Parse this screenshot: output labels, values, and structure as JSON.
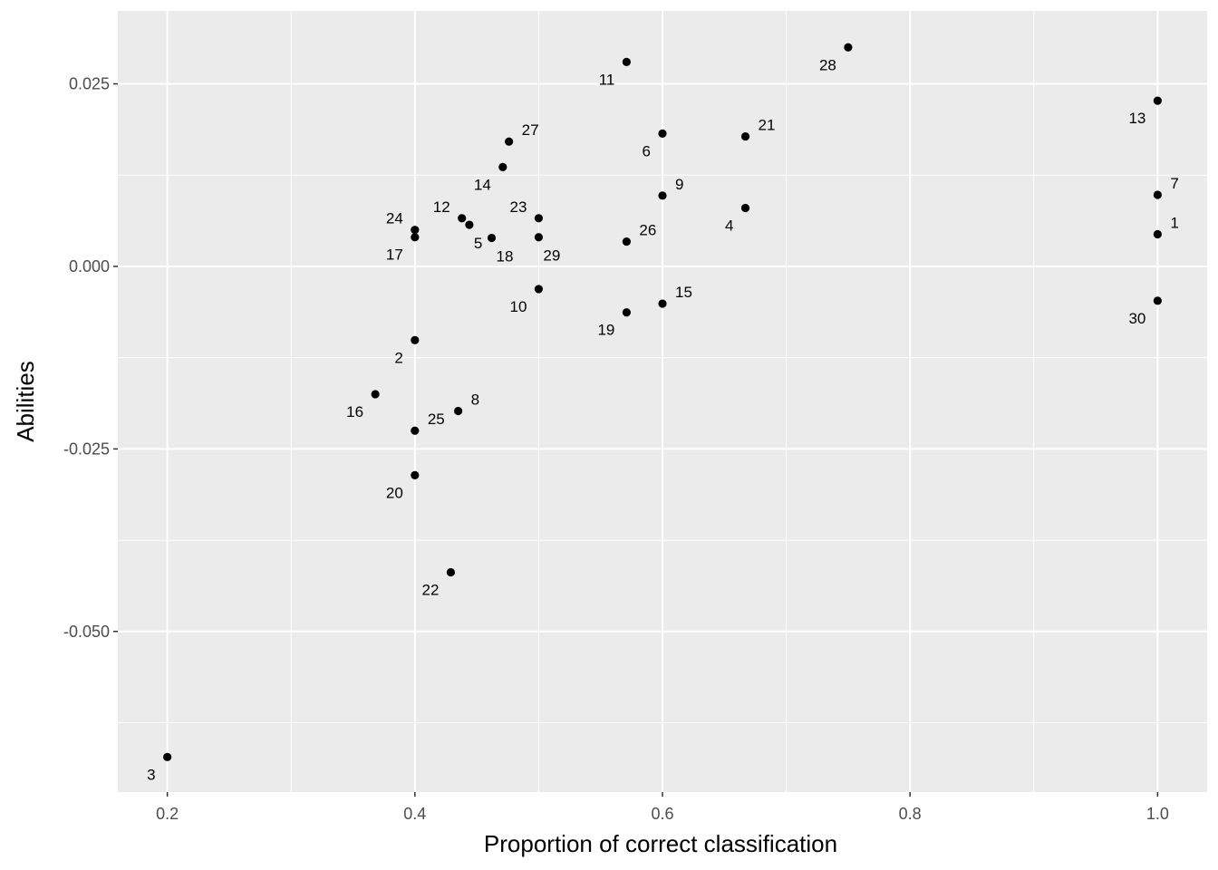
{
  "chart_data": {
    "type": "scatter",
    "title": "",
    "xlabel": "Proportion of correct classification",
    "ylabel": "Abilities",
    "xlim": [
      0.16,
      1.04
    ],
    "ylim": [
      -0.072,
      0.035
    ],
    "x_ticks": [
      {
        "value": 0.2,
        "label": "0.2"
      },
      {
        "value": 0.4,
        "label": "0.4"
      },
      {
        "value": 0.6,
        "label": "0.6"
      },
      {
        "value": 0.8,
        "label": "0.8"
      },
      {
        "value": 1.0,
        "label": "1.0"
      }
    ],
    "y_ticks": [
      {
        "value": -0.05,
        "label": "-0.050"
      },
      {
        "value": -0.025,
        "label": "-0.025"
      },
      {
        "value": 0.0,
        "label": "0.000"
      },
      {
        "value": 0.025,
        "label": "0.025"
      }
    ],
    "x_minor": [
      0.3,
      0.5,
      0.7,
      0.9
    ],
    "y_minor": [
      -0.0625,
      -0.0375,
      -0.0125,
      0.0125
    ],
    "grid": true,
    "background": "#ebebeb",
    "gridline_color": "#ffffff",
    "point_color": "#000000",
    "points": [
      {
        "label": "1",
        "x": 1.0,
        "y": 0.0044,
        "label_pos": "upper-right"
      },
      {
        "label": "2",
        "x": 0.4,
        "y": -0.0101,
        "label_pos": "lower-left"
      },
      {
        "label": "3",
        "x": 0.2,
        "y": -0.0672,
        "label_pos": "lower-left"
      },
      {
        "label": "4",
        "x": 0.667,
        "y": 0.008,
        "label_pos": "lower-left"
      },
      {
        "label": "5",
        "x": 0.444,
        "y": 0.0057,
        "label_pos": "lower-right"
      },
      {
        "label": "6",
        "x": 0.6,
        "y": 0.0182,
        "label_pos": "lower-left"
      },
      {
        "label": "7",
        "x": 1.0,
        "y": 0.0098,
        "label_pos": "upper-right"
      },
      {
        "label": "8",
        "x": 0.435,
        "y": -0.0198,
        "label_pos": "upper-right"
      },
      {
        "label": "9",
        "x": 0.6,
        "y": 0.0097,
        "label_pos": "upper-right"
      },
      {
        "label": "10",
        "x": 0.5,
        "y": -0.0031,
        "label_pos": "lower-left"
      },
      {
        "label": "11",
        "x": 0.571,
        "y": 0.028,
        "label_pos": "lower-left"
      },
      {
        "label": "12",
        "x": 0.438,
        "y": 0.0066,
        "label_pos": "upper-left"
      },
      {
        "label": "13",
        "x": 1.0,
        "y": 0.0227,
        "label_pos": "lower-left"
      },
      {
        "label": "14",
        "x": 0.471,
        "y": 0.0136,
        "label_pos": "lower-left"
      },
      {
        "label": "15",
        "x": 0.6,
        "y": -0.0051,
        "label_pos": "upper-right"
      },
      {
        "label": "16",
        "x": 0.368,
        "y": -0.0175,
        "label_pos": "lower-left"
      },
      {
        "label": "17",
        "x": 0.4,
        "y": 0.004,
        "label_pos": "lower-left"
      },
      {
        "label": "18",
        "x": 0.462,
        "y": 0.0039,
        "label_pos": "lower-right"
      },
      {
        "label": "19",
        "x": 0.571,
        "y": -0.0063,
        "label_pos": "lower-left"
      },
      {
        "label": "20",
        "x": 0.4,
        "y": -0.0286,
        "label_pos": "lower-left"
      },
      {
        "label": "21",
        "x": 0.667,
        "y": 0.0178,
        "label_pos": "upper-right"
      },
      {
        "label": "22",
        "x": 0.429,
        "y": -0.0419,
        "label_pos": "lower-left"
      },
      {
        "label": "23",
        "x": 0.5,
        "y": 0.0066,
        "label_pos": "upper-left"
      },
      {
        "label": "24",
        "x": 0.4,
        "y": 0.005,
        "label_pos": "upper-left"
      },
      {
        "label": "25",
        "x": 0.4,
        "y": -0.0225,
        "label_pos": "upper-right"
      },
      {
        "label": "26",
        "x": 0.571,
        "y": 0.0034,
        "label_pos": "upper-right"
      },
      {
        "label": "27",
        "x": 0.476,
        "y": 0.0171,
        "label_pos": "upper-right"
      },
      {
        "label": "28",
        "x": 0.75,
        "y": 0.03,
        "label_pos": "lower-left"
      },
      {
        "label": "29",
        "x": 0.5,
        "y": 0.004,
        "label_pos": "lower-right"
      },
      {
        "label": "30",
        "x": 1.0,
        "y": -0.0047,
        "label_pos": "lower-left"
      }
    ]
  }
}
